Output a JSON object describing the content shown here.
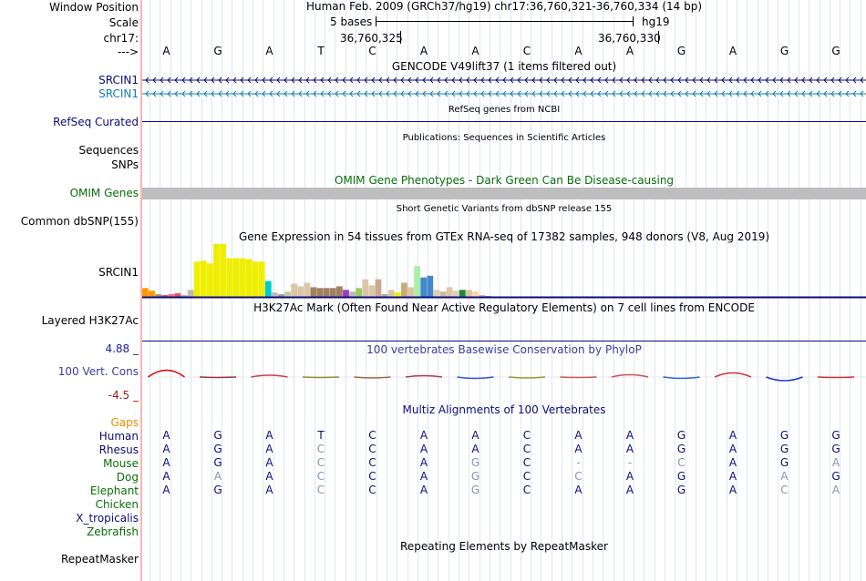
{
  "header": {
    "window_position_label": "Window Position",
    "window_position_value": "Human Feb. 2009 (GRCh37/hg19)   chr17:36,760,321-36,760,334 (14 bp)",
    "scale_label": "Scale",
    "scale_text": "5 bases",
    "scale_db": "hg19",
    "chrom_label": "chr17:",
    "coord_left": "36,760,325",
    "coord_right": "36,760,330",
    "arrow_label": "--->",
    "bases": [
      "A",
      "G",
      "A",
      "T",
      "C",
      "A",
      "A",
      "C",
      "A",
      "A",
      "G",
      "A",
      "G",
      "G"
    ]
  },
  "gencode": {
    "title": "GENCODE V49lift37 (1 items filtered out)",
    "gene1": "SRCIN1",
    "gene2": "SRCIN1",
    "gene1_color": "#0c0c78",
    "gene2_color": "#1280aa"
  },
  "refseq": {
    "title": "RefSeq genes from NCBI",
    "label": "RefSeq Curated",
    "color": "#0c0c78"
  },
  "publications": {
    "title": "Publications: Sequences in Scientific Articles",
    "seq_label": "Sequences",
    "snps_label": "SNPs"
  },
  "omim": {
    "title": "OMIM Gene Phenotypes - Dark Green Can Be Disease-causing",
    "label": "OMIM Genes",
    "color": "#0a6e0a",
    "bar_color": "#bebebe"
  },
  "dbsnp": {
    "title": "Short Genetic Variants from dbSNP release 155",
    "label": "Common dbSNP(155)"
  },
  "gtex": {
    "title": "Gene Expression in 54 tissues from GTEx RNA-seq of 17382 samples, 948 donors (V8, Aug 2019)",
    "label": "SRCIN1",
    "max_value": 60,
    "tissues": [
      {
        "value": 10,
        "color": "#ff9900"
      },
      {
        "value": 7,
        "color": "#ff9900"
      },
      {
        "value": 3,
        "color": "#ab8f6e"
      },
      {
        "value": 2,
        "color": "#c44c80"
      },
      {
        "value": 3,
        "color": "#ff6666"
      },
      {
        "value": 4,
        "color": "#dd5555"
      },
      {
        "value": 2,
        "color": "#aaaaaa"
      },
      {
        "value": 8,
        "color": "#c4b8ac"
      },
      {
        "value": 40,
        "color": "#eeee00"
      },
      {
        "value": 41,
        "color": "#eeee00"
      },
      {
        "value": 38,
        "color": "#eeee00"
      },
      {
        "value": 60,
        "color": "#eeee00"
      },
      {
        "value": 60,
        "color": "#eeee00"
      },
      {
        "value": 44,
        "color": "#eeee00"
      },
      {
        "value": 44,
        "color": "#eeee00"
      },
      {
        "value": 44,
        "color": "#eeee00"
      },
      {
        "value": 43,
        "color": "#eeee00"
      },
      {
        "value": 40,
        "color": "#eeee00"
      },
      {
        "value": 40,
        "color": "#eeee00"
      },
      {
        "value": 18,
        "color": "#00cccc"
      },
      {
        "value": 5,
        "color": "#bbbbbb"
      },
      {
        "value": 3,
        "color": "#999999"
      },
      {
        "value": 6,
        "color": "#cccc99"
      },
      {
        "value": 15,
        "color": "#dbc7a7"
      },
      {
        "value": 12,
        "color": "#dbc7a7"
      },
      {
        "value": 16,
        "color": "#dbc7a7"
      },
      {
        "value": 11,
        "color": "#a0815f"
      },
      {
        "value": 10,
        "color": "#a0815f"
      },
      {
        "value": 10,
        "color": "#a0815f"
      },
      {
        "value": 10,
        "color": "#a0815f"
      },
      {
        "value": 12,
        "color": "#a0815f"
      },
      {
        "value": 8,
        "color": "#9b3cb9"
      },
      {
        "value": 6,
        "color": "#bbbbbb"
      },
      {
        "value": 10,
        "color": "#99cc66"
      },
      {
        "value": 20,
        "color": "#dbc7a7"
      },
      {
        "value": 13,
        "color": "#dbc7a7"
      },
      {
        "value": 20,
        "color": "#cba88e"
      },
      {
        "value": 3,
        "color": "#aaaaaa"
      },
      {
        "value": 8,
        "color": "#dbc7a7"
      },
      {
        "value": 5,
        "color": "#eeee00"
      },
      {
        "value": 16,
        "color": "#ccaa77"
      },
      {
        "value": 11,
        "color": "#dbc7a7"
      },
      {
        "value": 35,
        "color": "#aaeeaa"
      },
      {
        "value": 22,
        "color": "#4488cc"
      },
      {
        "value": 24,
        "color": "#4488cc"
      },
      {
        "value": 8,
        "color": "#ddd0b4"
      },
      {
        "value": 6,
        "color": "#ccbb99"
      },
      {
        "value": 11,
        "color": "#dbc7a7"
      },
      {
        "value": 7,
        "color": "#ddd0b4"
      },
      {
        "value": 8,
        "color": "#228833"
      },
      {
        "value": 8,
        "color": "#dbc7a7"
      },
      {
        "value": 6,
        "color": "#ffd5a0"
      },
      {
        "value": 2,
        "color": "#cc99cc"
      },
      {
        "value": 1,
        "color": "#aaaaaa"
      }
    ]
  },
  "h3k27ac": {
    "title": "H3K27Ac Mark (Often Found Near Active Regulatory Elements) on 7 cell lines from ENCODE",
    "label": "Layered H3K27Ac"
  },
  "conservation": {
    "title": "100 vertebrates Basewise Conservation by PhyloP",
    "label": "100 Vert. Cons",
    "max_label": "4.88 _",
    "min_label": "-4.5 _",
    "max_color": "#1e1ea0",
    "min_color": "#a01e1e",
    "label_color": "#3c3ca0",
    "ymax": 4.88,
    "ymin": -4.5,
    "scores": [
      1.5,
      -0.1,
      0.4,
      -0.1,
      -0.2,
      0.3,
      -0.3,
      -0.2,
      -0.1,
      0.5,
      -0.3,
      0.9,
      -0.8,
      -0.1
    ]
  },
  "multiz": {
    "title": "Multiz Alignments of 100 Vertebrates",
    "gaps_label": "Gaps",
    "gaps_color": "#e09000",
    "species": [
      {
        "name": "Human",
        "color": "#0c0c78",
        "bases": [
          "A",
          "G",
          "A",
          "T",
          "C",
          "A",
          "A",
          "C",
          "A",
          "A",
          "G",
          "A",
          "G",
          "G"
        ],
        "match": [
          1,
          1,
          1,
          1,
          1,
          1,
          1,
          1,
          1,
          1,
          1,
          1,
          1,
          1
        ]
      },
      {
        "name": "Rhesus",
        "color": "#0c0c78",
        "bases": [
          "A",
          "G",
          "A",
          "C",
          "C",
          "A",
          "A",
          "C",
          "A",
          "A",
          "G",
          "A",
          "G",
          "G"
        ],
        "match": [
          1,
          1,
          1,
          0,
          1,
          1,
          1,
          1,
          1,
          1,
          1,
          1,
          1,
          1
        ]
      },
      {
        "name": "Mouse",
        "color": "#0a6e0a",
        "bases": [
          "A",
          "G",
          "A",
          "C",
          "C",
          "A",
          "G",
          "C",
          "-",
          "-",
          "C",
          "A",
          "G",
          "A"
        ],
        "match": [
          1,
          1,
          1,
          0,
          1,
          1,
          0,
          1,
          0,
          0,
          0,
          1,
          1,
          0
        ]
      },
      {
        "name": "Dog",
        "color": "#0a6e0a",
        "bases": [
          "A",
          "A",
          "A",
          "C",
          "C",
          "A",
          "G",
          "C",
          "C",
          "A",
          "G",
          "A",
          "A",
          "G"
        ],
        "match": [
          1,
          0,
          1,
          0,
          1,
          1,
          0,
          1,
          0,
          1,
          1,
          1,
          0,
          1
        ]
      },
      {
        "name": "Elephant",
        "color": "#0a6e0a",
        "bases": [
          "A",
          "G",
          "A",
          "C",
          "C",
          "A",
          "G",
          "C",
          "A",
          "A",
          "G",
          "A",
          "C",
          "A"
        ],
        "match": [
          1,
          1,
          1,
          0,
          1,
          1,
          0,
          1,
          1,
          1,
          1,
          1,
          0,
          0
        ]
      },
      {
        "name": "Chicken",
        "color": "#0a6e0a",
        "bases": [],
        "match": []
      },
      {
        "name": "X_tropicalis",
        "color": "#0c0c78",
        "bases": [],
        "match": []
      },
      {
        "name": "Zebrafish",
        "color": "#0a6e0a",
        "bases": [],
        "match": []
      }
    ]
  },
  "repeatmasker": {
    "title": "Repeating Elements by RepeatMasker",
    "label": "RepeatMasker"
  }
}
